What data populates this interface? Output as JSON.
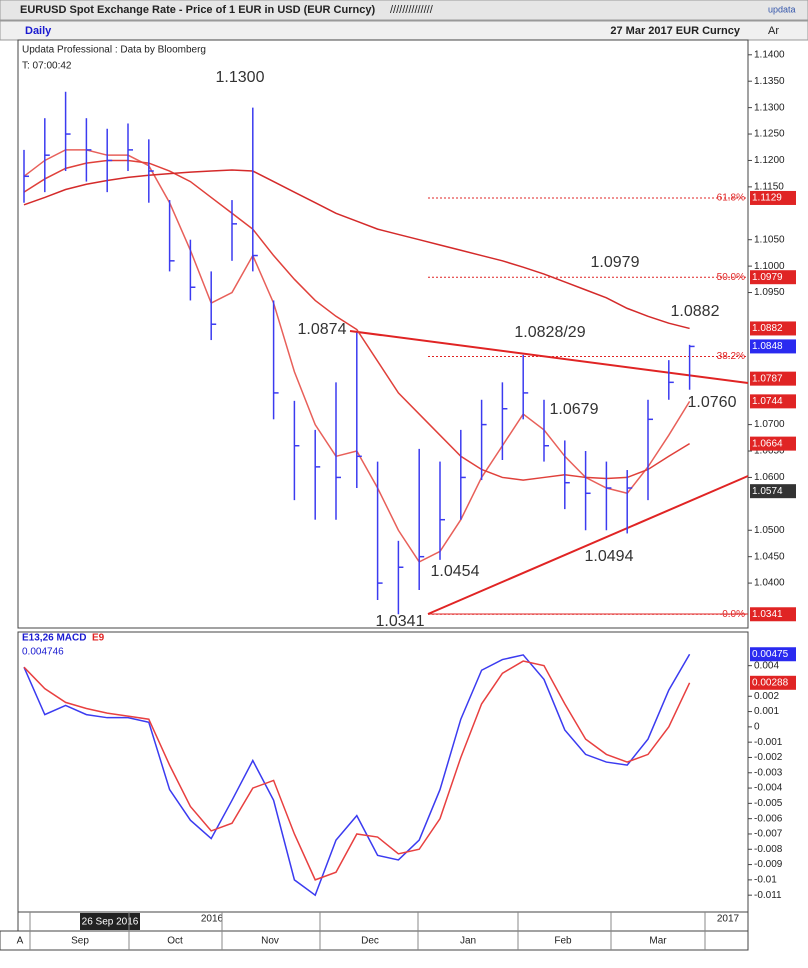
{
  "header": {
    "title": "EURUSD Spot Exchange Rate - Price of 1 EUR in USD (EUR Curncy)",
    "hatch": "//////////////",
    "logo": "updata",
    "period": "Daily",
    "stamp": "27 Mar 2017 EUR Curncy",
    "corner": "Ar",
    "source": "Updata Professional : Data by Bloomberg",
    "time": "T: 07:00:42"
  },
  "x_axis": {
    "date_box": "26 Sep 2016",
    "years": [
      "2016",
      "2017"
    ],
    "months": [
      "Sep",
      "Oct",
      "Nov",
      "Dec",
      "Jan",
      "Feb",
      "Mar"
    ],
    "corner": "A"
  },
  "chart_data": [
    {
      "type": "ohlc",
      "color": "#3b3bf0",
      "categories": [
        null,
        null,
        null,
        null,
        null,
        null,
        null,
        null,
        null,
        null,
        null,
        null,
        null,
        null,
        null,
        null,
        null,
        null,
        null,
        null,
        null,
        null,
        null,
        null,
        null,
        null,
        null,
        null,
        null,
        null,
        null,
        null,
        null
      ],
      "high": [
        1.122,
        1.128,
        1.133,
        1.128,
        1.126,
        1.127,
        1.124,
        1.1125,
        1.105,
        1.099,
        1.1125,
        1.13,
        1.0935,
        1.0745,
        1.069,
        1.078,
        1.0874,
        1.063,
        1.048,
        1.0654,
        1.063,
        1.069,
        1.0747,
        1.078,
        1.0832,
        1.0747,
        1.067,
        1.065,
        1.063,
        1.0614,
        1.0747,
        1.0822,
        1.0851
      ],
      "low": [
        1.112,
        1.114,
        1.118,
        1.116,
        1.114,
        1.118,
        1.112,
        1.099,
        1.0935,
        1.086,
        1.101,
        1.099,
        1.071,
        1.0557,
        1.052,
        1.052,
        1.058,
        1.0368,
        1.0341,
        1.0387,
        1.0444,
        1.052,
        1.0595,
        1.0633,
        1.071,
        1.063,
        1.054,
        1.05,
        1.05,
        1.0494,
        1.0557,
        1.0747,
        1.0766
      ],
      "close": [
        1.117,
        1.121,
        1.125,
        1.122,
        1.12,
        1.122,
        1.118,
        1.101,
        1.096,
        1.089,
        1.108,
        1.102,
        1.076,
        1.066,
        1.062,
        1.06,
        1.064,
        1.04,
        1.043,
        1.045,
        1.052,
        1.06,
        1.07,
        1.073,
        1.076,
        1.066,
        1.059,
        1.057,
        1.058,
        1.058,
        1.071,
        1.078,
        1.0848
      ],
      "moving_averages": [
        {
          "color": "#e8605a",
          "values": [
            1.117,
            1.12,
            1.122,
            1.122,
            1.121,
            1.121,
            1.119,
            1.112,
            1.103,
            1.093,
            1.095,
            1.102,
            1.093,
            1.08,
            1.07,
            1.064,
            1.065,
            1.058,
            1.05,
            1.044,
            1.046,
            1.052,
            1.06,
            1.066,
            1.072,
            1.069,
            1.064,
            1.06,
            1.058,
            1.057,
            1.062,
            1.068,
            1.0744
          ]
        },
        {
          "color": "#e0403a",
          "values": [
            1.114,
            1.1165,
            1.1185,
            1.1195,
            1.12,
            1.12,
            1.1195,
            1.118,
            1.116,
            1.113,
            1.11,
            1.107,
            1.102,
            1.0975,
            1.0935,
            1.0905,
            1.088,
            1.082,
            1.076,
            1.072,
            1.068,
            1.064,
            1.0615,
            1.06,
            1.0595,
            1.06,
            1.0605,
            1.06,
            1.0598,
            1.06,
            1.0615,
            1.064,
            1.0664
          ]
        },
        {
          "color": "#d42a2a",
          "values": [
            1.1116,
            1.113,
            1.1145,
            1.1155,
            1.1162,
            1.1168,
            1.1172,
            1.1175,
            1.1178,
            1.118,
            1.1182,
            1.118,
            1.116,
            1.114,
            1.112,
            1.11,
            1.1085,
            1.107,
            1.106,
            1.105,
            1.104,
            1.103,
            1.102,
            1.101,
            1.0998,
            1.0985,
            1.097,
            1.0955,
            1.094,
            1.092,
            1.0905,
            1.0892,
            1.0882
          ]
        }
      ],
      "ylim": [
        1.0315,
        1.1428
      ],
      "yticks": [
        {
          "value": 1.14,
          "label": "1.1400"
        },
        {
          "value": 1.135,
          "label": "1.1350"
        },
        {
          "value": 1.13,
          "label": "1.1300"
        },
        {
          "value": 1.125,
          "label": "1.1250"
        },
        {
          "value": 1.12,
          "label": "1.1200"
        },
        {
          "value": 1.115,
          "label": "1.1150"
        },
        {
          "value": 1.105,
          "label": "1.1050"
        },
        {
          "value": 1.1,
          "label": "1.1000"
        },
        {
          "value": 1.095,
          "label": "1.0950"
        },
        {
          "value": 1.07,
          "label": "1.0700"
        },
        {
          "value": 1.065,
          "label": "1.0650"
        },
        {
          "value": 1.06,
          "label": "1.0600"
        },
        {
          "value": 1.05,
          "label": "1.0500"
        },
        {
          "value": 1.045,
          "label": "1.0450"
        },
        {
          "value": 1.04,
          "label": "1.0400"
        }
      ],
      "price_labels": [
        {
          "value": 1.1129,
          "label": "1.1129",
          "color": "#e02424"
        },
        {
          "value": 1.0979,
          "label": "1.0979",
          "color": "#e02424"
        },
        {
          "value": 1.0882,
          "label": "1.0882",
          "color": "#e02424"
        },
        {
          "value": 1.0848,
          "label": "1.0848",
          "color": "#2a2af0"
        },
        {
          "value": 1.0787,
          "label": "1.0787",
          "color": "#e02424"
        },
        {
          "value": 1.0744,
          "label": "1.0744",
          "color": "#e02424"
        },
        {
          "value": 1.0664,
          "label": "1.0664",
          "color": "#e02424"
        },
        {
          "value": 1.0574,
          "label": "1.0574",
          "color": "#333333"
        },
        {
          "value": 1.0341,
          "label": "1.0341",
          "color": "#e02424"
        }
      ],
      "fib_levels": [
        {
          "value": 1.1129,
          "label": "61.8%"
        },
        {
          "value": 1.0979,
          "label": "50.0%"
        },
        {
          "value": 1.0829,
          "label": "38.2%"
        },
        {
          "value": 1.0341,
          "label": "0.0%"
        }
      ],
      "annotations": [
        "1.1300",
        "1.0874",
        "1.0828/29",
        "1.0979",
        "1.0882",
        "1.0679",
        "1.0760",
        "1.0454",
        "1.0494",
        "1.0341"
      ]
    },
    {
      "type": "line",
      "title": "E13,26 MACD",
      "signal_label": "E9",
      "current": "0.004746",
      "series": [
        {
          "color": "#3b3bf0",
          "values": [
            0.0039,
            0.0008,
            0.0014,
            0.0008,
            0.0006,
            0.0006,
            0.0003,
            -0.0041,
            -0.0061,
            -0.0073,
            -0.0048,
            -0.0022,
            -0.0048,
            -0.01,
            -0.011,
            -0.0074,
            -0.0058,
            -0.0084,
            -0.0087,
            -0.0074,
            -0.0041,
            0.0005,
            0.0037,
            0.0044,
            0.0047,
            0.0031,
            -0.0002,
            -0.0018,
            -0.0023,
            -0.0025,
            -0.0008,
            0.0024,
            0.004746
          ]
        },
        {
          "color": "#e84040",
          "values": [
            0.0039,
            0.0025,
            0.0016,
            0.0012,
            0.0009,
            0.0007,
            0.0005,
            -0.0025,
            -0.0052,
            -0.0068,
            -0.0063,
            -0.004,
            -0.0035,
            -0.007,
            -0.01,
            -0.0095,
            -0.007,
            -0.0072,
            -0.0083,
            -0.008,
            -0.006,
            -0.002,
            0.0015,
            0.0035,
            0.0043,
            0.004,
            0.0015,
            -0.0008,
            -0.0018,
            -0.0023,
            -0.0018,
            0,
            0.00288
          ]
        }
      ],
      "ylim": [
        -0.0121,
        0.0062
      ],
      "yticks": [
        0.004,
        0.002,
        0.001,
        0,
        -0.001,
        -0.002,
        -0.003,
        -0.004,
        -0.005,
        -0.006,
        -0.007,
        -0.008,
        -0.009,
        -0.01,
        -0.011
      ],
      "price_labels": [
        {
          "value": 0.004746,
          "label": "0.00475",
          "color": "#2a2af0"
        },
        {
          "value": 0.00288,
          "label": "0.00288",
          "color": "#e02424"
        }
      ]
    }
  ]
}
